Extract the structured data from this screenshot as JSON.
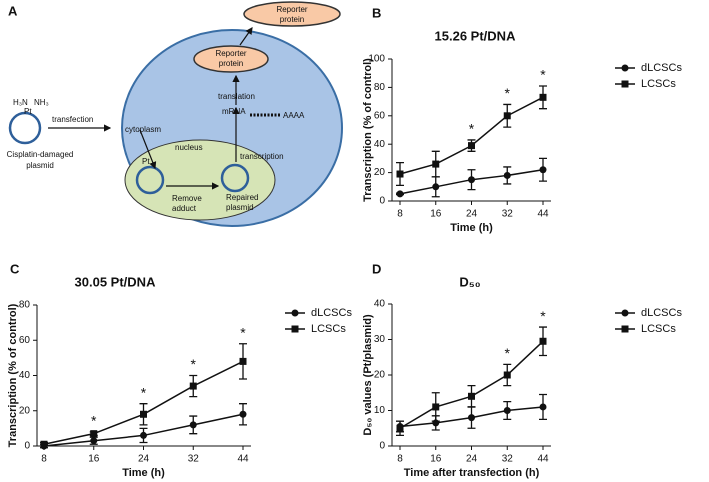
{
  "diagram": {
    "letter": "A",
    "reporter_top": [
      "Reporter",
      "protein"
    ],
    "reporter_inner": [
      "Reporter",
      "protein"
    ],
    "amine_left": "H₃N",
    "amine_right": "NH₃",
    "platinum": "Pt",
    "transfection": "transfection",
    "plasmid_label": [
      "Cisplatin-damaged",
      "plasmid"
    ],
    "cytoplasm": "cytoplasm",
    "translation": "translation",
    "mrna": "mRNA",
    "polya": "AAAA",
    "nucleus": "nucleus",
    "transcription": "transcription",
    "nuclear_platinum": "Pt",
    "remove": [
      "Remove",
      "adduct"
    ],
    "repaired": [
      "Repaired",
      "plasmid"
    ]
  },
  "chart_data": [
    {
      "type": "line",
      "panel": "B",
      "title": "15.26 Pt/DNA",
      "xlabel": "Time (h)",
      "ylabel": "Transcription (% of control)",
      "categories": [
        "8",
        "16",
        "24",
        "32",
        "44"
      ],
      "ylim": [
        0,
        100
      ],
      "yticks": [
        0,
        20,
        40,
        60,
        80,
        100
      ],
      "series": [
        {
          "name": "dLCSCs",
          "color": "#111111",
          "marker": "circle",
          "values": [
            5,
            10,
            15,
            18,
            22
          ],
          "errors": [
            0.5,
            7,
            7,
            6,
            8
          ]
        },
        {
          "name": "LCSCs",
          "color": "#111111",
          "marker": "square",
          "values": [
            19,
            26,
            39,
            60,
            73
          ],
          "errors": [
            8,
            9,
            4,
            8,
            8
          ]
        }
      ],
      "annotations": [
        {
          "x": "24",
          "text": "*"
        },
        {
          "x": "32",
          "text": "*"
        },
        {
          "x": "44",
          "text": "*"
        }
      ]
    },
    {
      "type": "line",
      "panel": "C",
      "title": "30.05 Pt/DNA",
      "xlabel": "Time (h)",
      "ylabel": "Transcription  (% of control)",
      "categories": [
        "8",
        "16",
        "24",
        "32",
        "44"
      ],
      "ylim": [
        0,
        80
      ],
      "yticks": [
        0,
        20,
        40,
        60,
        80
      ],
      "series": [
        {
          "name": "dLCSCs",
          "color": "#111111",
          "marker": "circle",
          "values": [
            0,
            3,
            6,
            12,
            18
          ],
          "errors": [
            1,
            2,
            4,
            5,
            6
          ]
        },
        {
          "name": "LCSCs",
          "color": "#111111",
          "marker": "square",
          "values": [
            1,
            7,
            18,
            34,
            48
          ],
          "errors": [
            1,
            1,
            6,
            6,
            10
          ]
        }
      ],
      "annotations": [
        {
          "x": "16",
          "text": "*"
        },
        {
          "x": "24",
          "text": "*"
        },
        {
          "x": "32",
          "text": "*"
        },
        {
          "x": "44",
          "text": "*"
        }
      ]
    },
    {
      "type": "line",
      "panel": "D",
      "title": "D₅₀",
      "xlabel": "Time after transfection (h)",
      "ylabel": "D₅₀ values (Pt/plasmid)",
      "categories": [
        "8",
        "16",
        "24",
        "32",
        "44"
      ],
      "ylim": [
        0,
        40
      ],
      "yticks": [
        0,
        10,
        20,
        30,
        40
      ],
      "series": [
        {
          "name": "dLCSCs",
          "color": "#111111",
          "marker": "circle",
          "values": [
            5.5,
            6.5,
            8,
            10,
            11
          ],
          "errors": [
            1.5,
            2,
            3,
            2.5,
            3.5
          ]
        },
        {
          "name": "LCSCs",
          "color": "#111111",
          "marker": "square",
          "values": [
            5,
            11,
            14,
            20,
            29.5
          ],
          "errors": [
            2,
            4,
            3,
            3,
            4
          ]
        }
      ],
      "annotations": [
        {
          "x": "32",
          "text": "*"
        },
        {
          "x": "44",
          "text": "*"
        }
      ]
    }
  ]
}
